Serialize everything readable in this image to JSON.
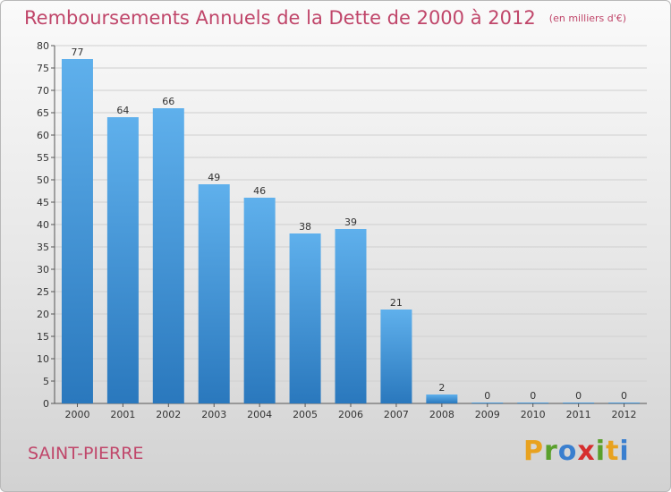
{
  "chart_data": {
    "type": "bar",
    "title": "Remboursements Annuels de la Dette de 2000 à 2012",
    "unit": "(en milliers d'€)",
    "categories": [
      "2000",
      "2001",
      "2002",
      "2003",
      "2004",
      "2005",
      "2006",
      "2007",
      "2008",
      "2009",
      "2010",
      "2011",
      "2012"
    ],
    "values": [
      77,
      64,
      66,
      49,
      46,
      38,
      39,
      21,
      2,
      0,
      0,
      0,
      0
    ],
    "ylim": [
      0,
      80
    ],
    "yticks": [
      0,
      5,
      10,
      15,
      20,
      25,
      30,
      35,
      40,
      45,
      50,
      55,
      60,
      65,
      70,
      75,
      80
    ],
    "grid": true,
    "bar_color": "#3c8fd6",
    "title_color": "#c0466a"
  },
  "footer": {
    "commune": "SAINT-PIERRE"
  },
  "logo": {
    "letters": [
      "P",
      "r",
      "o",
      "x",
      "i",
      "t",
      "i"
    ],
    "colors": [
      "#e8a21f",
      "#5aa02c",
      "#3a7fcf",
      "#d62e2e",
      "#5aa02c",
      "#e8a21f",
      "#3a7fcf"
    ]
  }
}
